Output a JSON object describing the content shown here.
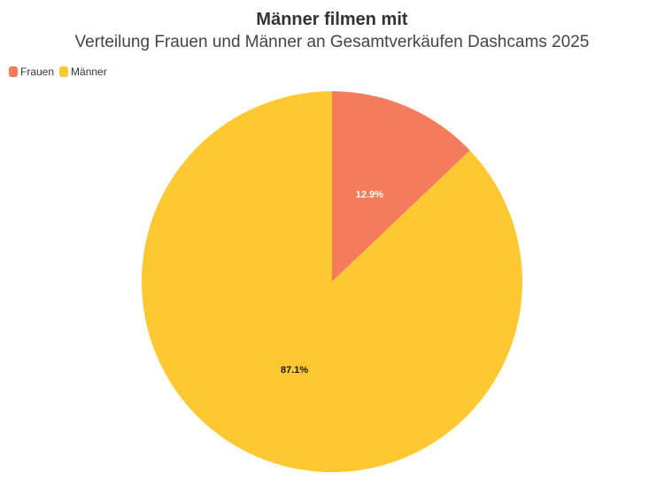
{
  "chart_data": {
    "type": "pie",
    "title": "Männer filmen mit",
    "subtitle": "Verteilung Frauen und Männer an Gesamtverkäufen Dashcams 2025",
    "legend_position": "top-left",
    "series": [
      {
        "name": "Frauen",
        "value": 12.9,
        "label": "12.9%",
        "color": "#f47b5b",
        "label_color": "#ffffff"
      },
      {
        "name": "Männer",
        "value": 87.1,
        "label": "87.1%",
        "color": "#fdc832",
        "label_color": "#1a1a1a"
      }
    ]
  }
}
